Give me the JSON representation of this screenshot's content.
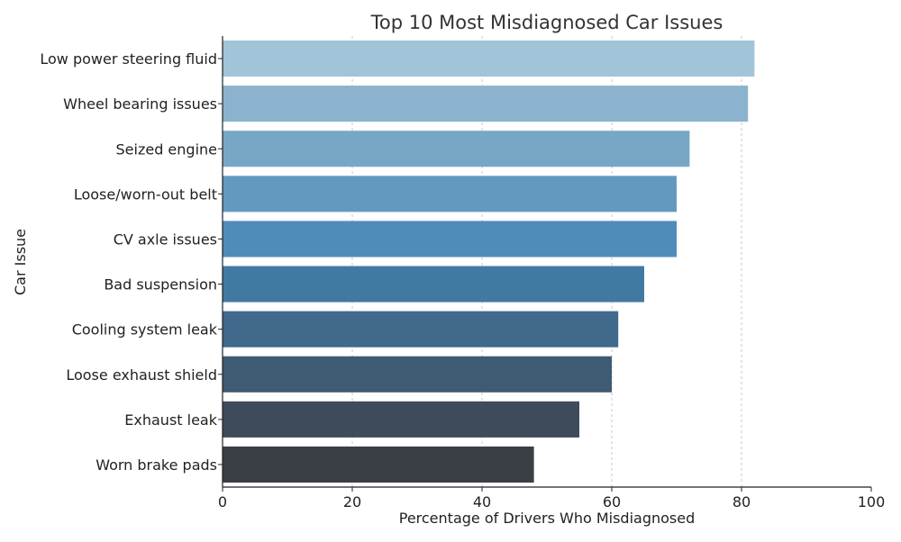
{
  "chart_data": {
    "type": "bar",
    "orientation": "horizontal",
    "title": "Top 10 Most Misdiagnosed Car Issues",
    "xlabel": "Percentage of Drivers Who Misdiagnosed",
    "ylabel": "Car Issue",
    "xlim": [
      0,
      100
    ],
    "xticks": [
      "0",
      "20",
      "40",
      "60",
      "80",
      "100"
    ],
    "xtick_values": [
      0,
      20,
      40,
      60,
      80,
      100
    ],
    "grid": "vertical dashed",
    "categories": [
      "Low power steering fluid",
      "Wheel bearing issues",
      "Seized engine",
      "Loose/worn-out belt",
      "CV axle issues",
      "Bad suspension",
      "Cooling system leak",
      "Loose exhaust shield",
      "Exhaust leak",
      "Worn brake pads"
    ],
    "values": [
      82,
      81,
      72,
      70,
      70,
      65,
      61,
      60,
      55,
      48
    ],
    "colors": [
      "#a1c4d8",
      "#8cb3cd",
      "#78a7c6",
      "#6499bf",
      "#4f8cba",
      "#4279a3",
      "#40698c",
      "#3f5a73",
      "#3e4b5b",
      "#3a3f46"
    ]
  }
}
